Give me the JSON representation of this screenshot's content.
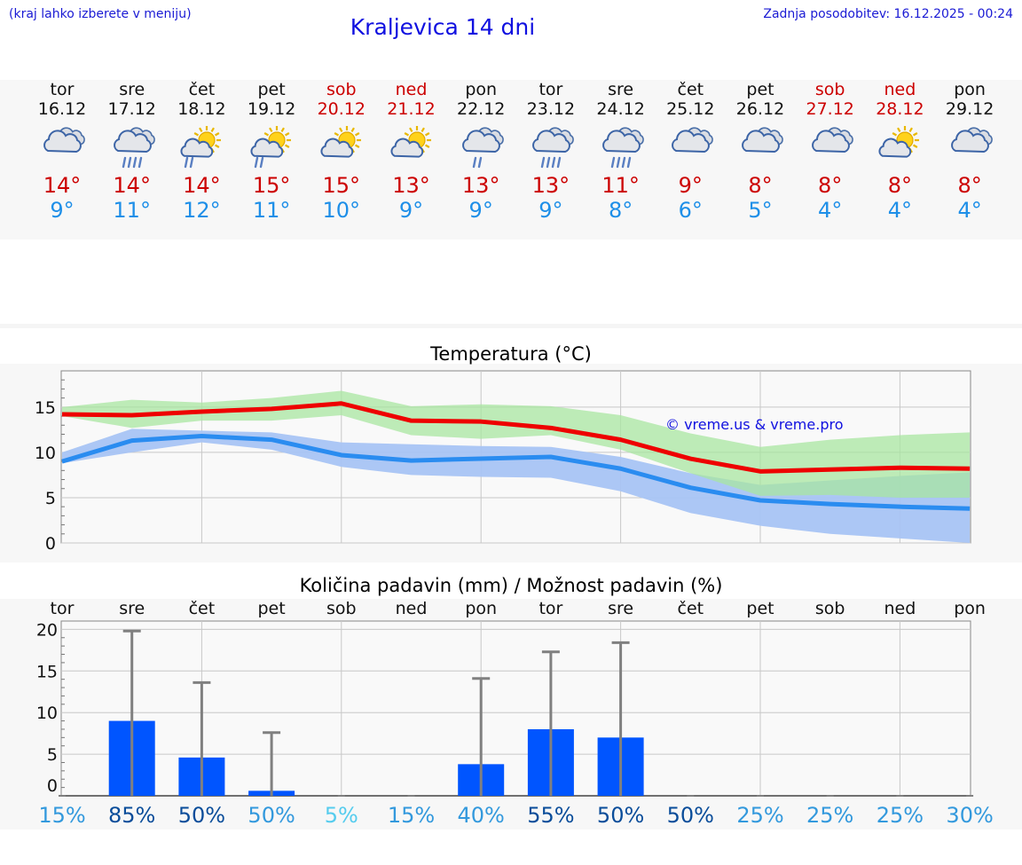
{
  "header": {
    "hint": "(kraj lahko izberete v meniju)",
    "title": "Kraljevica 14 dni",
    "updated": "Zadnja posodobitev: 16.12.2025 - 00:24"
  },
  "days": [
    {
      "name": "tor",
      "date": "16.12",
      "icon": "cloudy-icon",
      "weekend": false,
      "max": "14°",
      "min": "9°"
    },
    {
      "name": "sre",
      "date": "17.12",
      "icon": "cloud-heavy-rain-icon",
      "weekend": false,
      "max": "14°",
      "min": "11°"
    },
    {
      "name": "čet",
      "date": "18.12",
      "icon": "sun-cloud-rain-icon",
      "weekend": false,
      "max": "14°",
      "min": "12°"
    },
    {
      "name": "pet",
      "date": "19.12",
      "icon": "sun-cloud-rain-icon",
      "weekend": false,
      "max": "15°",
      "min": "11°"
    },
    {
      "name": "sob",
      "date": "20.12",
      "icon": "partly-sunny-icon",
      "weekend": true,
      "max": "15°",
      "min": "10°"
    },
    {
      "name": "ned",
      "date": "21.12",
      "icon": "partly-sunny-icon",
      "weekend": true,
      "max": "13°",
      "min": "9°"
    },
    {
      "name": "pon",
      "date": "22.12",
      "icon": "cloud-rain-icon",
      "weekend": false,
      "max": "13°",
      "min": "9°"
    },
    {
      "name": "tor",
      "date": "23.12",
      "icon": "cloud-heavy-rain-icon",
      "weekend": false,
      "max": "13°",
      "min": "9°"
    },
    {
      "name": "sre",
      "date": "24.12",
      "icon": "cloud-heavy-rain-icon",
      "weekend": false,
      "max": "11°",
      "min": "8°"
    },
    {
      "name": "čet",
      "date": "25.12",
      "icon": "cloudy-icon",
      "weekend": false,
      "max": "9°",
      "min": "6°"
    },
    {
      "name": "pet",
      "date": "26.12",
      "icon": "cloudy-icon",
      "weekend": false,
      "max": "8°",
      "min": "5°"
    },
    {
      "name": "sob",
      "date": "27.12",
      "icon": "cloudy-icon",
      "weekend": true,
      "max": "8°",
      "min": "4°"
    },
    {
      "name": "ned",
      "date": "28.12",
      "icon": "partly-sunny-icon",
      "weekend": true,
      "max": "8°",
      "min": "4°"
    },
    {
      "name": "pon",
      "date": "29.12",
      "icon": "cloudy-icon",
      "weekend": false,
      "max": "8°",
      "min": "4°"
    }
  ],
  "colors": {
    "max": "#ee0000",
    "min": "#2a8cf0",
    "max_band": "#a8e6a0",
    "min_band": "#a8c4f4",
    "overlap_band": "#7fc8a8",
    "bar": "#0055ff",
    "whisker": "#808080",
    "watermark": "#1010e0"
  },
  "chart_data": [
    {
      "type": "line",
      "title": "Temperatura (°C)",
      "watermark": "© vreme.us & vreme.pro",
      "ylim": [
        0,
        19
      ],
      "yticks": [
        0,
        5,
        10,
        15
      ],
      "series": [
        {
          "name": "max",
          "values": [
            14.2,
            14.1,
            14.5,
            14.8,
            15.4,
            13.5,
            13.4,
            12.7,
            11.4,
            9.3,
            7.9,
            8.1,
            8.3,
            8.2
          ]
        },
        {
          "name": "min",
          "values": [
            9.0,
            11.3,
            11.8,
            11.4,
            9.7,
            9.1,
            9.3,
            9.5,
            8.2,
            6.1,
            4.7,
            4.3,
            4.0,
            3.8
          ]
        }
      ],
      "bands": [
        {
          "name": "max_range",
          "upper": [
            15.0,
            15.8,
            15.5,
            16.0,
            16.8,
            15.1,
            15.3,
            15.1,
            14.1,
            12.1,
            10.6,
            11.4,
            11.9,
            12.2
          ],
          "lower": [
            14.0,
            12.7,
            13.5,
            13.5,
            14.1,
            11.9,
            11.5,
            11.9,
            10.3,
            7.7,
            5.2,
            5.3,
            5.0,
            5.0
          ]
        },
        {
          "name": "min_range",
          "upper": [
            10.0,
            12.6,
            12.4,
            12.2,
            11.1,
            10.9,
            10.7,
            10.6,
            9.5,
            7.7,
            6.4,
            6.9,
            7.4,
            7.8
          ],
          "lower": [
            8.8,
            10.0,
            11.1,
            10.3,
            8.4,
            7.5,
            7.3,
            7.2,
            5.7,
            3.3,
            1.9,
            1.0,
            0.5,
            0.0
          ]
        }
      ]
    },
    {
      "type": "bar",
      "title": "Količina padavin (mm) / Možnost padavin (%)",
      "categories": [
        "tor",
        "sre",
        "čet",
        "pet",
        "sob",
        "ned",
        "pon",
        "tor",
        "sre",
        "čet",
        "pet",
        "sob",
        "ned",
        "pon"
      ],
      "ylim": [
        0,
        21
      ],
      "yticks": [
        0,
        5,
        10,
        15,
        20
      ],
      "values": [
        0,
        9.0,
        4.6,
        0.6,
        0,
        0,
        3.8,
        8.0,
        7.0,
        0,
        0,
        0,
        0,
        0
      ],
      "max_values": [
        0,
        19.8,
        13.6,
        7.6,
        0,
        0,
        14.1,
        17.3,
        18.4,
        0,
        0,
        0,
        0,
        0
      ],
      "probability": [
        "15%",
        "85%",
        "50%",
        "50%",
        "5%",
        "15%",
        "40%",
        "55%",
        "50%",
        "50%",
        "25%",
        "25%",
        "25%",
        "30%"
      ],
      "probability_colors": [
        "#3399dd",
        "#0a4d9a",
        "#0a4d9a",
        "#3399dd",
        "#55ccee",
        "#3399dd",
        "#3399dd",
        "#0a4d9a",
        "#0a4d9a",
        "#0a4d9a",
        "#3399dd",
        "#3399dd",
        "#3399dd",
        "#3399dd"
      ]
    }
  ]
}
